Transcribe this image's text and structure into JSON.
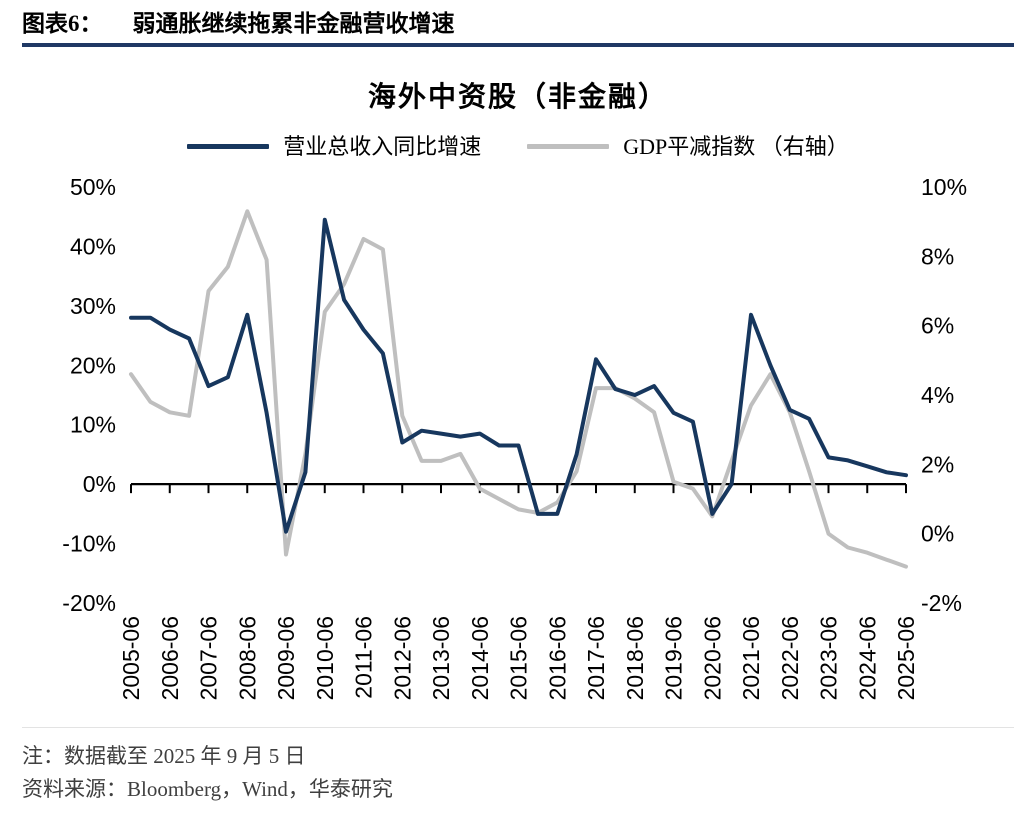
{
  "header": {
    "label": "图表6：",
    "title": "弱通胀继续拖累非金融营收增速"
  },
  "chart_data": {
    "type": "line",
    "title": "海外中资股（非金融）",
    "legend_position": "top",
    "grid": false,
    "x": [
      "2005-06",
      "2005-12",
      "2006-06",
      "2006-12",
      "2007-06",
      "2007-12",
      "2008-06",
      "2008-12",
      "2009-06",
      "2009-12",
      "2010-06",
      "2010-12",
      "2011-06",
      "2011-12",
      "2012-06",
      "2012-12",
      "2013-06",
      "2013-12",
      "2014-06",
      "2014-12",
      "2015-06",
      "2015-12",
      "2016-06",
      "2016-12",
      "2017-06",
      "2017-12",
      "2018-06",
      "2018-12",
      "2019-06",
      "2019-12",
      "2020-06",
      "2020-12",
      "2021-06",
      "2021-12",
      "2022-06",
      "2022-12",
      "2023-06",
      "2023-12",
      "2024-06",
      "2024-12",
      "2025-06"
    ],
    "x_tick_labels": [
      "2005-06",
      "2006-06",
      "2007-06",
      "2008-06",
      "2009-06",
      "2010-06",
      "2011-06",
      "2012-06",
      "2013-06",
      "2014-06",
      "2015-06",
      "2016-06",
      "2017-06",
      "2018-06",
      "2019-06",
      "2020-06",
      "2021-06",
      "2022-06",
      "2023-06",
      "2024-06",
      "2025-06"
    ],
    "x_tick_every": 2,
    "series": [
      {
        "name": "营业总收入同比增速",
        "axis": "left",
        "color": "#17375E",
        "values": [
          28,
          28,
          26,
          24.5,
          16.5,
          18,
          28.5,
          12,
          -8,
          2,
          44.5,
          31,
          26,
          22,
          7,
          9,
          8.5,
          8,
          8.5,
          6.5,
          6.5,
          -5,
          -5,
          5,
          21,
          16,
          15,
          16.5,
          12,
          10.5,
          -5,
          0,
          28.5,
          20,
          12.5,
          11,
          4.5,
          4,
          3,
          2,
          1.5
        ]
      },
      {
        "name": "GDP平减指数 （右轴）",
        "axis": "right",
        "color": "#BFBFBF",
        "values": [
          4.6,
          3.8,
          3.5,
          3.4,
          7.0,
          7.7,
          9.3,
          7.9,
          -0.6,
          2.3,
          6.4,
          7.2,
          8.5,
          8.2,
          3.4,
          2.1,
          2.1,
          2.3,
          1.3,
          1.0,
          0.7,
          0.6,
          0.9,
          1.8,
          4.2,
          4.2,
          3.9,
          3.5,
          1.5,
          1.3,
          0.5,
          2.1,
          3.7,
          4.6,
          3.5,
          1.8,
          0.0,
          -0.4,
          -0.55,
          -0.75,
          -0.95
        ]
      }
    ],
    "left_axis": {
      "min": -20,
      "max": 50,
      "step": 10,
      "labels": [
        "50%",
        "40%",
        "30%",
        "20%",
        "10%",
        "0%",
        "-10%",
        "-20%"
      ]
    },
    "right_axis": {
      "min": -2,
      "max": 10,
      "step": 2,
      "labels": [
        "10%",
        "8%",
        "6%",
        "4%",
        "2%",
        "0%",
        "-2%"
      ]
    },
    "zero_line_at_left_value": 0
  },
  "notes": {
    "note": "注：数据截至 2025 年 9 月 5 日",
    "source": "资料来源：Bloomberg，Wind，华泰研究"
  }
}
